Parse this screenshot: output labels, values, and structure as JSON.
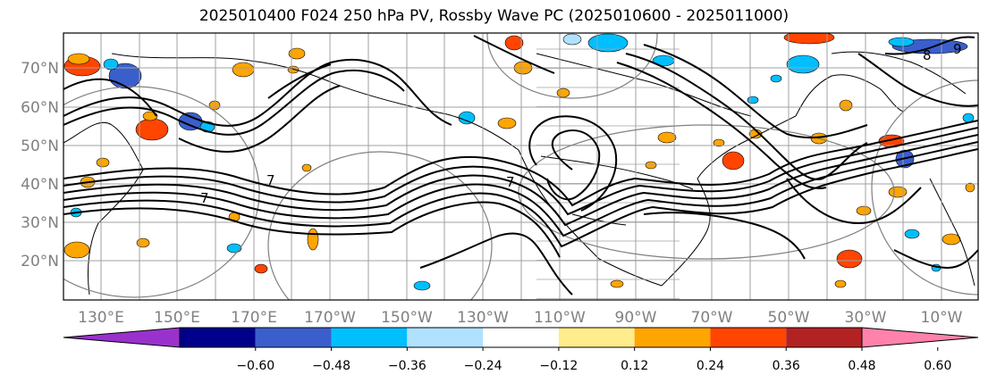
{
  "title": "2025010400 F024 250 hPa PV, Rossby Wave PC (2025010600 - 2025011000)",
  "map": {
    "lat_labels": [
      "70°N",
      "60°N",
      "50°N",
      "40°N",
      "30°N",
      "20°N"
    ],
    "lon_labels": [
      "130°E",
      "150°E",
      "170°E",
      "170°W",
      "150°W",
      "130°W",
      "110°W",
      "90°W",
      "70°W",
      "50°W",
      "30°W",
      "10°W"
    ],
    "contour_labels": [
      "7",
      "7",
      "7",
      "8",
      "9"
    ],
    "grid_color": "#a0a0a0",
    "contour_color": "#000000"
  },
  "colorbar": {
    "colors": [
      "#9932cc",
      "#00008b",
      "#3a5fcd",
      "#00bfff",
      "#b0e2ff",
      "#ffffff",
      "#ffec8b",
      "#ffa500",
      "#ff4500",
      "#b22222",
      "#ff82ab"
    ],
    "labels": [
      "−0.60",
      "−0.48",
      "−0.36",
      "−0.24",
      "−0.12",
      "0.12",
      "0.24",
      "0.36",
      "0.48",
      "0.60"
    ]
  }
}
